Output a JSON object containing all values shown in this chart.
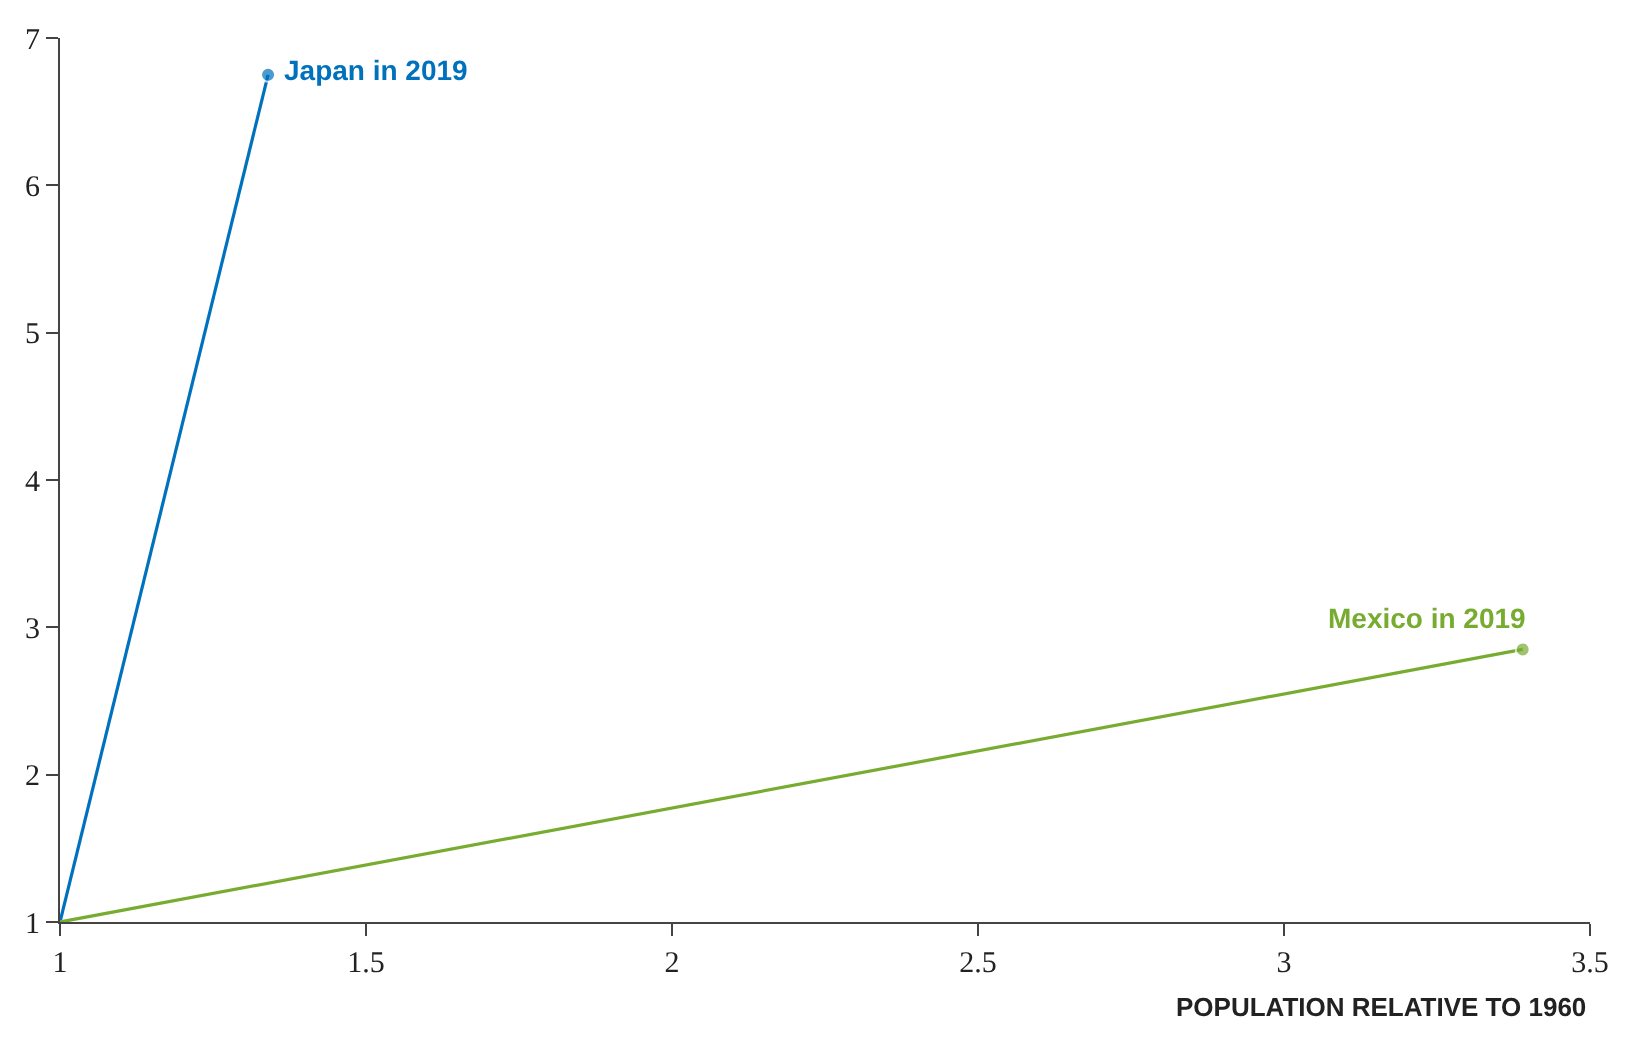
{
  "chart_data": {
    "type": "line",
    "xlabel": "POPULATION RELATIVE TO 1960",
    "xlim": [
      1,
      3.5
    ],
    "xticks": [
      1,
      1.5,
      2,
      2.5,
      3,
      3.5
    ],
    "ylim": [
      1,
      7
    ],
    "yticks": [
      1,
      2,
      3,
      4,
      5,
      6,
      7
    ],
    "legend": false,
    "marker": "circle",
    "line_style": "solid",
    "series": [
      {
        "name": "Japan in 2019",
        "color": "#0072bd",
        "x": [
          1,
          1.34
        ],
        "values": [
          1,
          6.75
        ]
      },
      {
        "name": "Mexico in 2019",
        "color": "#77ac30",
        "x": [
          1,
          3.39
        ],
        "values": [
          1,
          2.85
        ]
      }
    ]
  }
}
